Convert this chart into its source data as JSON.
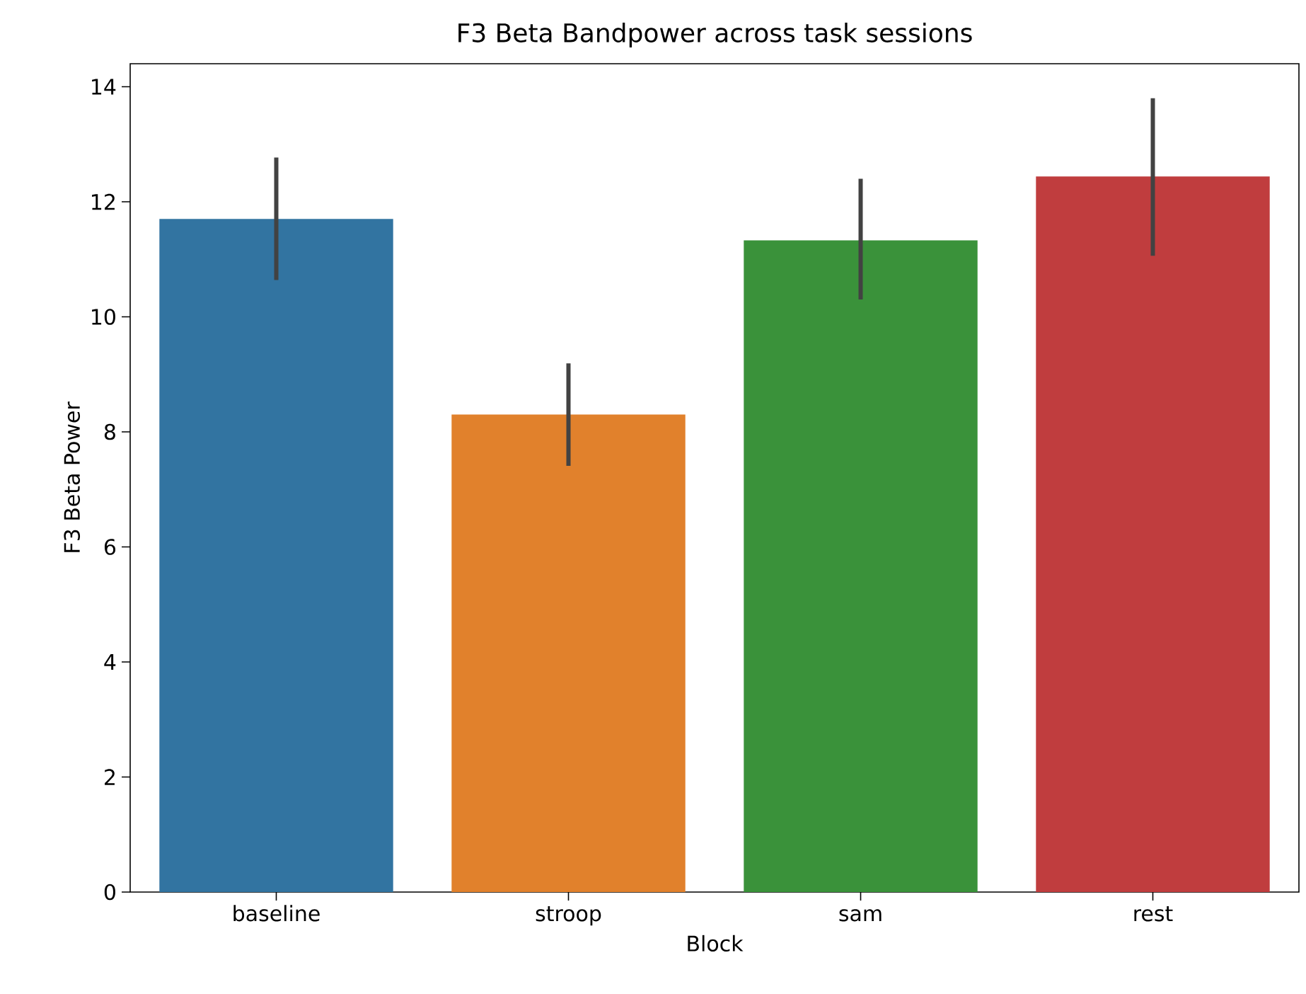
{
  "chart_data": {
    "type": "bar",
    "title": "F3 Beta Bandpower across task sessions",
    "xlabel": "Block",
    "ylabel": "F3 Beta Power",
    "categories": [
      "baseline",
      "stroop",
      "sam",
      "rest"
    ],
    "values": [
      11.7,
      8.3,
      11.33,
      12.44
    ],
    "colors": [
      "#3274a1",
      "#e1812c",
      "#3a923a",
      "#c03d3e"
    ],
    "errors": [
      [
        10.64,
        12.77
      ],
      [
        7.41,
        9.19
      ],
      [
        10.3,
        12.4
      ],
      [
        11.06,
        13.8
      ]
    ],
    "ylim": [
      0,
      14.4
    ],
    "yticks": [
      0,
      2,
      4,
      6,
      8,
      10,
      12,
      14
    ]
  }
}
